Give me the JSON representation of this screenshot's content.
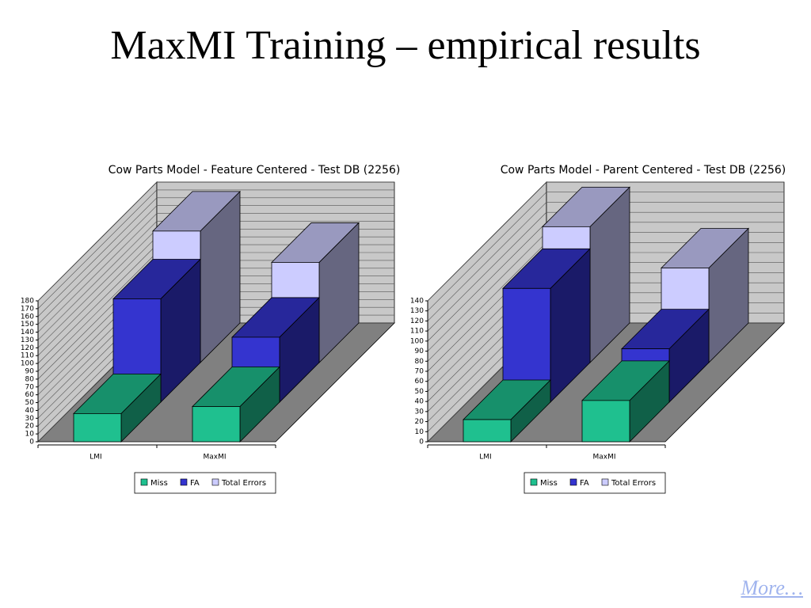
{
  "slide_title": "MaxMI Training – empirical results",
  "link": "More…",
  "chart_data": [
    {
      "type": "bar3d",
      "title": "Cow Parts Model - Feature Centered - Test DB (2256)",
      "categories": [
        "LMI",
        "MaxMI"
      ],
      "series": [
        {
          "name": "Miss",
          "color": "#1fc08f",
          "values": [
            36,
            45
          ]
        },
        {
          "name": "FA",
          "color": "#3434cf",
          "values": [
            132,
            83
          ]
        },
        {
          "name": "Total Errors",
          "color": "#ccccff",
          "values": [
            168,
            128
          ]
        }
      ],
      "ylim": [
        0,
        180
      ],
      "yticks": [
        0,
        10,
        20,
        30,
        40,
        50,
        60,
        70,
        80,
        90,
        100,
        110,
        120,
        130,
        140,
        150,
        160,
        170,
        180
      ],
      "grid": true,
      "legend": "bottom"
    },
    {
      "type": "bar3d",
      "title": "Cow Parts Model - Parent Centered - Test DB (2256)",
      "categories": [
        "LMI",
        "MaxMI"
      ],
      "series": [
        {
          "name": "Miss",
          "color": "#1fc08f",
          "values": [
            22,
            41
          ]
        },
        {
          "name": "FA",
          "color": "#3434cf",
          "values": [
            113,
            53
          ]
        },
        {
          "name": "Total Errors",
          "color": "#ccccff",
          "values": [
            135,
            94
          ]
        }
      ],
      "ylim": [
        0,
        140
      ],
      "yticks": [
        0,
        10,
        20,
        30,
        40,
        50,
        60,
        70,
        80,
        90,
        100,
        110,
        120,
        130,
        140
      ],
      "grid": true,
      "legend": "bottom"
    }
  ]
}
